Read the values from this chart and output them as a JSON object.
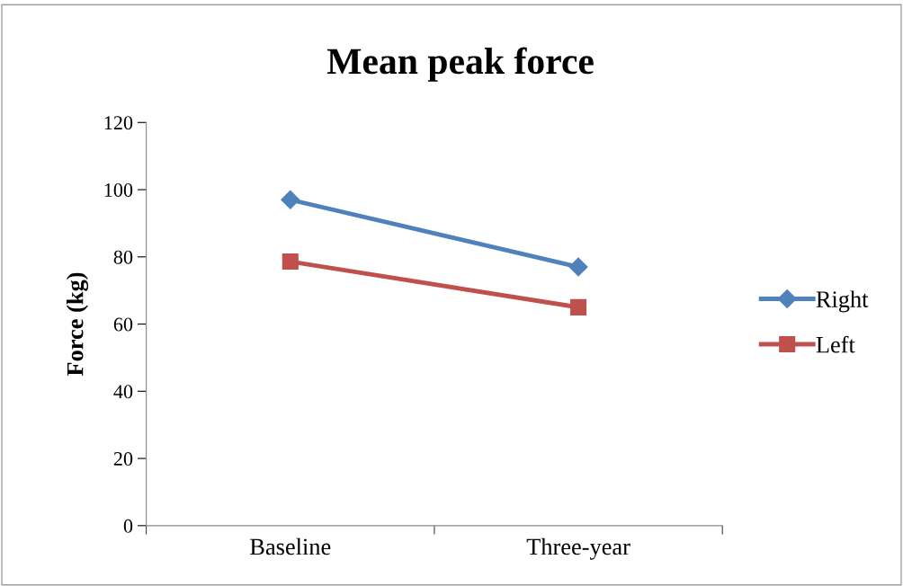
{
  "chart_data": {
    "type": "line",
    "title": "Mean peak force",
    "ylabel": "Force (kg)",
    "categories": [
      "Baseline",
      "Three-year"
    ],
    "series": [
      {
        "name": "Right",
        "color": "#4f81bd",
        "values": [
          97,
          77
        ],
        "marker": "diamond"
      },
      {
        "name": "Left",
        "color": "#c0504d",
        "values": [
          78.6,
          65
        ],
        "marker": "square"
      }
    ],
    "ylim": [
      0,
      120
    ],
    "yticks": [
      0,
      20,
      40,
      60,
      80,
      100,
      120
    ],
    "grid": false,
    "legend": "right",
    "line_style": "solid"
  }
}
